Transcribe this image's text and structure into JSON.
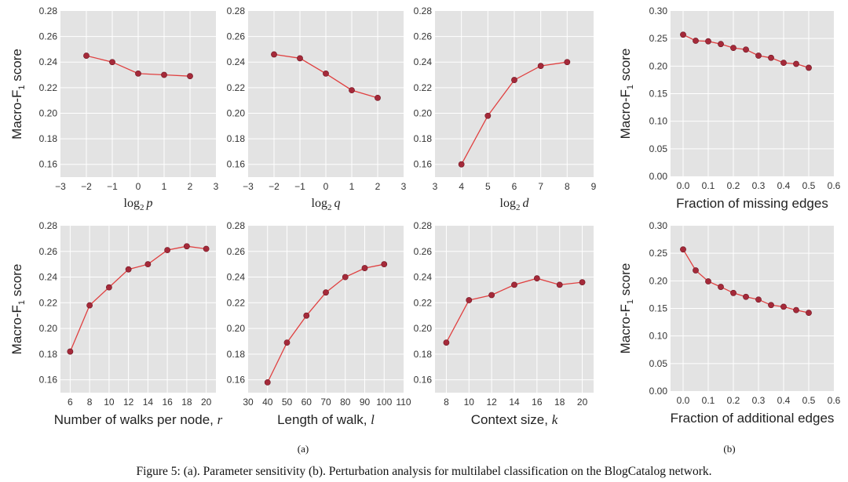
{
  "colors": {
    "plot_background": "#e3e3e3",
    "grid": "#ffffff",
    "line": "#e04040",
    "marker": "#a52a3a"
  },
  "figure": {
    "caption": "Figure 5: (a). Parameter sensitivity (b). Perturbation analysis for multilabel classification on the BlogCatalog network.",
    "subfigure_labels": [
      "(a)",
      "(b)"
    ]
  },
  "chart_data": [
    {
      "type": "line",
      "xlabel": "log2 p",
      "xlabel_math": {
        "fn": "log",
        "sub": "2",
        "var": "p"
      },
      "ylabel": "Macro-F1 score",
      "x": [
        -2,
        -1,
        0,
        1,
        2
      ],
      "y": [
        0.245,
        0.24,
        0.231,
        0.23,
        0.229
      ],
      "xlim": [
        -3,
        3
      ],
      "ylim": [
        0.15,
        0.28
      ],
      "xticks": [
        -3,
        -2,
        -1,
        0,
        1,
        2,
        3
      ],
      "xtick_labels": [
        "−3",
        "−2",
        "−1",
        "0",
        "1",
        "2",
        "3"
      ],
      "yticks": [
        0.16,
        0.18,
        0.2,
        0.22,
        0.24,
        0.26,
        0.28
      ],
      "ytick_labels": [
        "0.16",
        "0.18",
        "0.20",
        "0.22",
        "0.24",
        "0.26",
        "0.28"
      ],
      "grid": true
    },
    {
      "type": "line",
      "xlabel": "log2 q",
      "xlabel_math": {
        "fn": "log",
        "sub": "2",
        "var": "q"
      },
      "ylabel": "",
      "x": [
        -2,
        -1,
        0,
        1,
        2
      ],
      "y": [
        0.246,
        0.243,
        0.231,
        0.218,
        0.212
      ],
      "xlim": [
        -3,
        3
      ],
      "ylim": [
        0.15,
        0.28
      ],
      "xticks": [
        -3,
        -2,
        -1,
        0,
        1,
        2,
        3
      ],
      "xtick_labels": [
        "−3",
        "−2",
        "−1",
        "0",
        "1",
        "2",
        "3"
      ],
      "yticks": [
        0.16,
        0.18,
        0.2,
        0.22,
        0.24,
        0.26,
        0.28
      ],
      "ytick_labels": [
        "0.16",
        "0.18",
        "0.20",
        "0.22",
        "0.24",
        "0.26",
        "0.28"
      ],
      "grid": true
    },
    {
      "type": "line",
      "xlabel": "log2 d",
      "xlabel_math": {
        "fn": "log",
        "sub": "2",
        "var": "d"
      },
      "ylabel": "",
      "x": [
        4,
        5,
        6,
        7,
        8
      ],
      "y": [
        0.16,
        0.198,
        0.226,
        0.237,
        0.24
      ],
      "xlim": [
        3,
        9
      ],
      "ylim": [
        0.15,
        0.28
      ],
      "xticks": [
        3,
        4,
        5,
        6,
        7,
        8,
        9
      ],
      "xtick_labels": [
        "3",
        "4",
        "5",
        "6",
        "7",
        "8",
        "9"
      ],
      "yticks": [
        0.16,
        0.18,
        0.2,
        0.22,
        0.24,
        0.26,
        0.28
      ],
      "ytick_labels": [
        "0.16",
        "0.18",
        "0.20",
        "0.22",
        "0.24",
        "0.26",
        "0.28"
      ],
      "grid": true
    },
    {
      "type": "line",
      "xlabel": "Fraction of missing edges",
      "ylabel": "Macro-F1 score",
      "x": [
        0.0,
        0.05,
        0.1,
        0.15,
        0.2,
        0.25,
        0.3,
        0.35,
        0.4,
        0.45,
        0.5
      ],
      "y": [
        0.257,
        0.246,
        0.245,
        0.24,
        0.233,
        0.23,
        0.219,
        0.215,
        0.206,
        0.204,
        0.197
      ],
      "xlim": [
        -0.05,
        0.6
      ],
      "ylim": [
        0.0,
        0.3
      ],
      "xticks": [
        0.0,
        0.1,
        0.2,
        0.3,
        0.4,
        0.5,
        0.6
      ],
      "xtick_labels": [
        "0.0",
        "0.1",
        "0.2",
        "0.3",
        "0.4",
        "0.5",
        "0.6"
      ],
      "yticks": [
        0.0,
        0.05,
        0.1,
        0.15,
        0.2,
        0.25,
        0.3
      ],
      "ytick_labels": [
        "0.00",
        "0.05",
        "0.10",
        "0.15",
        "0.20",
        "0.25",
        "0.30"
      ],
      "grid": true
    },
    {
      "type": "line",
      "xlabel": "Number of walks per node, r",
      "xlabel_text": "Number of walks per node,",
      "xlabel_var": "r",
      "ylabel": "Macro-F1 score",
      "x": [
        6,
        8,
        10,
        12,
        14,
        16,
        18,
        20
      ],
      "y": [
        0.182,
        0.218,
        0.232,
        0.246,
        0.25,
        0.261,
        0.264,
        0.262
      ],
      "xlim": [
        5,
        21
      ],
      "ylim": [
        0.15,
        0.28
      ],
      "xticks": [
        6,
        8,
        10,
        12,
        14,
        16,
        18,
        20
      ],
      "xtick_labels": [
        "6",
        "8",
        "10",
        "12",
        "14",
        "16",
        "18",
        "20"
      ],
      "yticks": [
        0.16,
        0.18,
        0.2,
        0.22,
        0.24,
        0.26,
        0.28
      ],
      "ytick_labels": [
        "0.16",
        "0.18",
        "0.20",
        "0.22",
        "0.24",
        "0.26",
        "0.28"
      ],
      "grid": true
    },
    {
      "type": "line",
      "xlabel": "Length of walk, l",
      "xlabel_text": "Length of walk,",
      "xlabel_var": "l",
      "ylabel": "",
      "x": [
        40,
        50,
        60,
        70,
        80,
        90,
        100
      ],
      "y": [
        0.158,
        0.189,
        0.21,
        0.228,
        0.24,
        0.247,
        0.25
      ],
      "xlim": [
        30,
        110
      ],
      "ylim": [
        0.15,
        0.28
      ],
      "xticks": [
        30,
        40,
        50,
        60,
        70,
        80,
        90,
        100,
        110
      ],
      "xtick_labels": [
        "30",
        "40",
        "50",
        "60",
        "70",
        "80",
        "90",
        "100",
        "110"
      ],
      "yticks": [
        0.16,
        0.18,
        0.2,
        0.22,
        0.24,
        0.26,
        0.28
      ],
      "ytick_labels": [
        "0.16",
        "0.18",
        "0.20",
        "0.22",
        "0.24",
        "0.26",
        "0.28"
      ],
      "grid": true
    },
    {
      "type": "line",
      "xlabel": "Context size, k",
      "xlabel_text": "Context size,",
      "xlabel_var": "k",
      "ylabel": "",
      "x": [
        8,
        10,
        12,
        14,
        16,
        18,
        20
      ],
      "y": [
        0.189,
        0.222,
        0.226,
        0.234,
        0.239,
        0.234,
        0.236
      ],
      "xlim": [
        7,
        21
      ],
      "ylim": [
        0.15,
        0.28
      ],
      "xticks": [
        8,
        10,
        12,
        14,
        16,
        18,
        20
      ],
      "xtick_labels": [
        "8",
        "10",
        "12",
        "14",
        "16",
        "18",
        "20"
      ],
      "yticks": [
        0.16,
        0.18,
        0.2,
        0.22,
        0.24,
        0.26,
        0.28
      ],
      "ytick_labels": [
        "0.16",
        "0.18",
        "0.20",
        "0.22",
        "0.24",
        "0.26",
        "0.28"
      ],
      "grid": true
    },
    {
      "type": "line",
      "xlabel": "Fraction of additional edges",
      "ylabel": "Macro-F1 score",
      "x": [
        0.0,
        0.05,
        0.1,
        0.15,
        0.2,
        0.25,
        0.3,
        0.35,
        0.4,
        0.45,
        0.5
      ],
      "y": [
        0.257,
        0.219,
        0.199,
        0.189,
        0.178,
        0.171,
        0.166,
        0.156,
        0.153,
        0.147,
        0.142
      ],
      "xlim": [
        -0.05,
        0.6
      ],
      "ylim": [
        0.0,
        0.3
      ],
      "xticks": [
        0.0,
        0.1,
        0.2,
        0.3,
        0.4,
        0.5,
        0.6
      ],
      "xtick_labels": [
        "0.0",
        "0.1",
        "0.2",
        "0.3",
        "0.4",
        "0.5",
        "0.6"
      ],
      "yticks": [
        0.0,
        0.05,
        0.1,
        0.15,
        0.2,
        0.25,
        0.3
      ],
      "ytick_labels": [
        "0.00",
        "0.05",
        "0.10",
        "0.15",
        "0.20",
        "0.25",
        "0.30"
      ],
      "grid": true
    }
  ]
}
